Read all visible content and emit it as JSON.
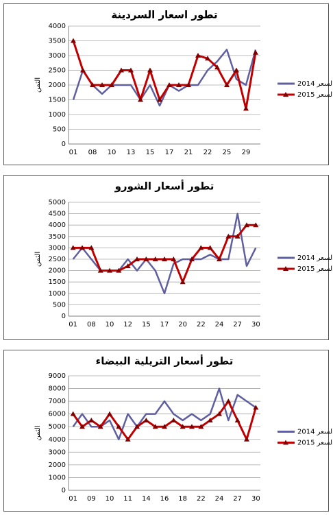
{
  "chart_data": [
    {
      "type": "line",
      "title": "تطور اسعار السردينة",
      "y_label": "الثمن",
      "categories": [
        "01",
        null,
        "08",
        null,
        "10",
        null,
        "13",
        null,
        "15",
        null,
        "17",
        null,
        "21",
        null,
        "22",
        null,
        "25",
        null,
        "29",
        null
      ],
      "series": [
        {
          "name": "2014 السعر",
          "color": "#5f5f9f",
          "values": [
            1500,
            2500,
            2000,
            1700,
            2000,
            2000,
            2000,
            1500,
            2000,
            1300,
            2000,
            1800,
            2000,
            2000,
            2500,
            2800,
            3200,
            2200,
            2000,
            3200
          ]
        },
        {
          "name": "2015 السعر",
          "color": "#c00000",
          "values": [
            3500,
            2500,
            2000,
            2000,
            2000,
            2500,
            2500,
            1500,
            2500,
            1500,
            2000,
            2000,
            2000,
            3000,
            2900,
            2600,
            2000,
            2500,
            1200,
            3100
          ]
        }
      ],
      "ylim": [
        0,
        4000
      ],
      "yticks": [
        0,
        500,
        1000,
        1500,
        2000,
        2500,
        3000,
        3500,
        4000
      ],
      "grid": true,
      "legend": "right"
    },
    {
      "type": "line",
      "title": "تطور أسعار الشورو",
      "y_label": "الثمن",
      "categories": [
        "01",
        null,
        "08",
        null,
        "10",
        null,
        "12",
        null,
        "15",
        null,
        "17",
        null,
        "20",
        null,
        "22",
        null,
        "24",
        null,
        "27",
        null,
        "30"
      ],
      "series": [
        {
          "name": "2014 السعر",
          "color": "#5f5f9f",
          "values": [
            2500,
            3000,
            2500,
            2000,
            2000,
            2000,
            2500,
            2000,
            2500,
            2000,
            1000,
            2300,
            2500,
            2500,
            2500,
            2700,
            2500,
            2500,
            4500,
            2200,
            3000
          ]
        },
        {
          "name": "2015 السعر",
          "color": "#c00000",
          "values": [
            3000,
            3000,
            3000,
            2000,
            2000,
            2000,
            2200,
            2500,
            2500,
            2500,
            2500,
            2500,
            1500,
            2500,
            3000,
            3000,
            2500,
            3500,
            3500,
            4000,
            4000
          ]
        }
      ],
      "ylim": [
        0,
        5000
      ],
      "yticks": [
        0,
        500,
        1000,
        1500,
        2000,
        2500,
        3000,
        3500,
        4000,
        4500,
        5000
      ],
      "grid": true,
      "legend": "right"
    },
    {
      "type": "line",
      "title": "تطور أسعار التريلية البيضاء",
      "y_label": "الثمن",
      "categories": [
        "01",
        null,
        "09",
        null,
        "10",
        null,
        "11",
        null,
        "14",
        null,
        "16",
        null,
        "18",
        null,
        "22",
        null,
        "24",
        null,
        "27",
        null,
        "30"
      ],
      "series": [
        {
          "name": "2014 السعر",
          "color": "#5f5f9f",
          "values": [
            5000,
            6000,
            5000,
            5000,
            5500,
            4000,
            6000,
            5000,
            6000,
            6000,
            7000,
            6000,
            5500,
            6000,
            5500,
            6000,
            8000,
            5500,
            7500,
            7000,
            6500
          ]
        },
        {
          "name": "2015 السعر",
          "color": "#c00000",
          "values": [
            6000,
            5000,
            5500,
            5000,
            6000,
            5000,
            4000,
            5000,
            5500,
            5000,
            5000,
            5500,
            5000,
            5000,
            5000,
            5500,
            6000,
            7000,
            5500,
            4000,
            6500
          ]
        }
      ],
      "ylim": [
        0,
        9000
      ],
      "yticks": [
        0,
        1000,
        2000,
        3000,
        4000,
        5000,
        6000,
        7000,
        8000,
        9000
      ],
      "grid": true,
      "legend": "right"
    }
  ]
}
